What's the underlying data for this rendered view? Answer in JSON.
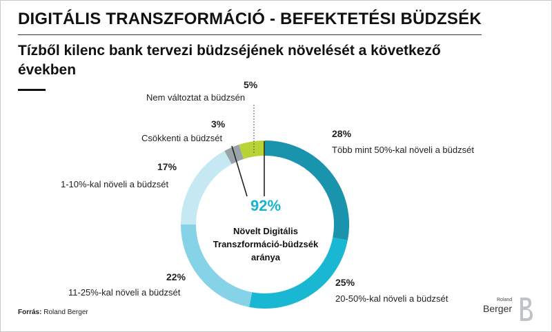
{
  "header": {
    "title": "DIGITÁLIS TRANSZFORMÁCIÓ - BEFEKTETÉSI BÜDZSÉK",
    "subtitle": "Tízből kilenc bank tervezi büdzséjének növelését a következő években"
  },
  "center": {
    "value": "92%",
    "label_lines": [
      "Növelt Digitális",
      "Transzformáció-büdzsék",
      "aránya"
    ]
  },
  "footer": {
    "source_label": "Forrás:",
    "source_value": "Roland Berger"
  },
  "logo": {
    "top_text": "Roland",
    "main_text": "Berger"
  },
  "colors": {
    "seg28": "#1a93ad",
    "seg25": "#1ab7d3",
    "seg22": "#86d2e6",
    "seg17": "#c6e8f3",
    "seg3": "#9aa3a8",
    "seg5": "#b7d436",
    "accent": "#19b3cf"
  },
  "chart_data": {
    "type": "pie",
    "donut": true,
    "title": "Tízből kilenc bank tervezi büdzséjének növelését a következő években",
    "categories": [
      "Több mint 50%-kal növeli a büdzsét",
      "20-50%-kal növeli a büdzsét",
      "11-25%-kal növeli a büdzsét",
      "1-10%-kal növeli a büdzsét",
      "Csökkenti a büdzsét",
      "Nem változtat a büdzsén"
    ],
    "values": [
      28,
      25,
      22,
      17,
      3,
      5
    ],
    "value_labels": [
      "28%",
      "25%",
      "22%",
      "17%",
      "3%",
      "5%"
    ],
    "center_value": "92%"
  }
}
